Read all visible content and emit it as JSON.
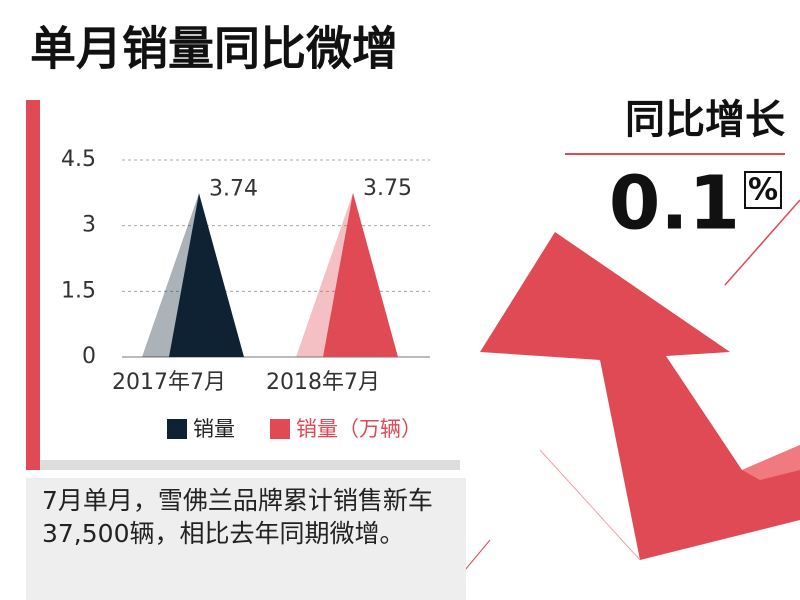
{
  "headline": "单月销量同比微增",
  "growth": {
    "label": "同比增长",
    "value": "0.1",
    "unit": "%"
  },
  "caption": "7月单月，雪佛兰品牌累计销售新车37,500辆，相比去年同期微增。",
  "chart_data": {
    "type": "bar",
    "categories": [
      "2017年7月",
      "2018年7月"
    ],
    "series": [
      {
        "name": "销量",
        "color": "#0e2233",
        "values": [
          3.74,
          null
        ]
      },
      {
        "name": "销量（万辆）",
        "color": "#e04a55",
        "values": [
          null,
          3.75
        ]
      }
    ],
    "ylim": [
      0,
      4.5
    ],
    "yticks": [
      0,
      1.5,
      3,
      4.5
    ],
    "grid": true
  }
}
